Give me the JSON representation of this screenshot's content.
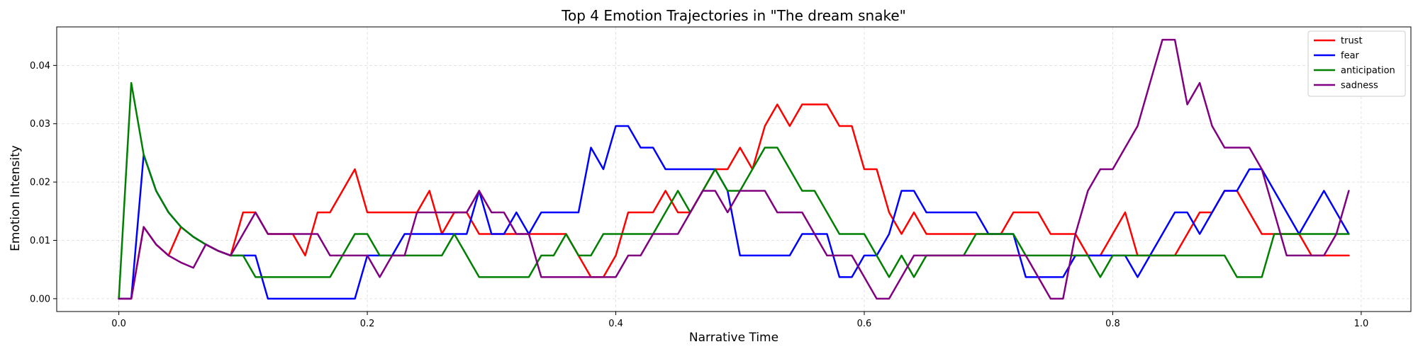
{
  "chart_data": {
    "type": "line",
    "title": "Top 4 Emotion Trajectories in \"The dream snake\"",
    "xlabel": "Narrative Time",
    "ylabel": "Emotion Intensity",
    "xlim": [
      -0.05,
      1.04
    ],
    "ylim": [
      -0.0022,
      0.0466
    ],
    "x_ticks": [
      0.0,
      0.2,
      0.4,
      0.6,
      0.8,
      1.0
    ],
    "x_tick_labels": [
      "0.0",
      "0.2",
      "0.4",
      "0.6",
      "0.8",
      "1.0"
    ],
    "y_ticks": [
      0.0,
      0.01,
      0.02,
      0.03,
      0.04
    ],
    "y_tick_labels": [
      "0.00",
      "0.01",
      "0.02",
      "0.03",
      "0.04"
    ],
    "grid": true,
    "legend_position": "top-right",
    "x": [
      0.0,
      0.01,
      0.02,
      0.03,
      0.04,
      0.05,
      0.06,
      0.07,
      0.08,
      0.09,
      0.1,
      0.11,
      0.12,
      0.13,
      0.14,
      0.15,
      0.16,
      0.17,
      0.18,
      0.19,
      0.2,
      0.21,
      0.22,
      0.23,
      0.24,
      0.25,
      0.26,
      0.27,
      0.28,
      0.29,
      0.3,
      0.31,
      0.32,
      0.33,
      0.34,
      0.35,
      0.36,
      0.37,
      0.38,
      0.39,
      0.4,
      0.41,
      0.42,
      0.43,
      0.44,
      0.45,
      0.46,
      0.47,
      0.48,
      0.49,
      0.5,
      0.51,
      0.52,
      0.53,
      0.54,
      0.55,
      0.56,
      0.57,
      0.58,
      0.59,
      0.6,
      0.61,
      0.62,
      0.63,
      0.64,
      0.65,
      0.66,
      0.67,
      0.68,
      0.69,
      0.7,
      0.71,
      0.72,
      0.73,
      0.74,
      0.75,
      0.76,
      0.77,
      0.78,
      0.79,
      0.8,
      0.81,
      0.82,
      0.83,
      0.84,
      0.85,
      0.86,
      0.87,
      0.88,
      0.89,
      0.9,
      0.91,
      0.92,
      0.93,
      0.94,
      0.95,
      0.96,
      0.97,
      0.98,
      0.99
    ],
    "series": [
      {
        "name": "trust",
        "color": "#ff0000",
        "values": [
          0.0,
          0.0,
          0.0123,
          0.0093,
          0.0074,
          0.0123,
          0.0106,
          0.0093,
          0.0082,
          0.0074,
          0.0148,
          0.0148,
          0.0111,
          0.0111,
          0.0111,
          0.0074,
          0.0148,
          0.0148,
          0.0185,
          0.0222,
          0.0148,
          0.0148,
          0.0148,
          0.0148,
          0.0148,
          0.0185,
          0.0111,
          0.0148,
          0.0148,
          0.0111,
          0.0111,
          0.0111,
          0.0111,
          0.0111,
          0.0111,
          0.0111,
          0.0111,
          0.0074,
          0.0037,
          0.0037,
          0.0074,
          0.0148,
          0.0148,
          0.0148,
          0.0185,
          0.0148,
          0.0148,
          0.0185,
          0.0222,
          0.0222,
          0.0259,
          0.0222,
          0.0296,
          0.0333,
          0.0296,
          0.0333,
          0.0333,
          0.0333,
          0.0296,
          0.0296,
          0.0222,
          0.0222,
          0.0148,
          0.0111,
          0.0148,
          0.0111,
          0.0111,
          0.0111,
          0.0111,
          0.0111,
          0.0111,
          0.0111,
          0.0148,
          0.0148,
          0.0148,
          0.0111,
          0.0111,
          0.0111,
          0.0074,
          0.0074,
          0.0111,
          0.0148,
          0.0074,
          0.0074,
          0.0074,
          0.0074,
          0.0111,
          0.0148,
          0.0148,
          0.0185,
          0.0185,
          0.0148,
          0.0111,
          0.0111,
          0.0111,
          0.0111,
          0.0074,
          0.0074,
          0.0074,
          0.0074
        ]
      },
      {
        "name": "fear",
        "color": "#0000ff",
        "values": [
          0.0,
          0.0,
          0.0247,
          0.0185,
          0.0148,
          0.0123,
          0.0106,
          0.0093,
          0.0082,
          0.0074,
          0.0074,
          0.0074,
          0.0,
          0.0,
          0.0,
          0.0,
          0.0,
          0.0,
          0.0,
          0.0,
          0.0074,
          0.0074,
          0.0074,
          0.0111,
          0.0111,
          0.0111,
          0.0111,
          0.0111,
          0.0111,
          0.0185,
          0.0111,
          0.0111,
          0.0148,
          0.0111,
          0.0148,
          0.0148,
          0.0148,
          0.0148,
          0.0259,
          0.0222,
          0.0296,
          0.0296,
          0.0259,
          0.0259,
          0.0222,
          0.0222,
          0.0222,
          0.0222,
          0.0222,
          0.0185,
          0.0074,
          0.0074,
          0.0074,
          0.0074,
          0.0074,
          0.0111,
          0.0111,
          0.0111,
          0.0037,
          0.0037,
          0.0074,
          0.0074,
          0.0111,
          0.0185,
          0.0185,
          0.0148,
          0.0148,
          0.0148,
          0.0148,
          0.0148,
          0.0111,
          0.0111,
          0.0111,
          0.0037,
          0.0037,
          0.0037,
          0.0037,
          0.0074,
          0.0074,
          0.0074,
          0.0074,
          0.0074,
          0.0037,
          0.0074,
          0.0111,
          0.0148,
          0.0148,
          0.0111,
          0.0148,
          0.0185,
          0.0185,
          0.0222,
          0.0222,
          0.0185,
          0.0148,
          0.0111,
          0.0148,
          0.0185,
          0.0148,
          0.0111
        ]
      },
      {
        "name": "anticipation",
        "color": "#008000",
        "values": [
          0.0,
          0.037,
          0.0247,
          0.0185,
          0.0148,
          0.0123,
          0.0106,
          0.0093,
          0.0082,
          0.0074,
          0.0074,
          0.0037,
          0.0037,
          0.0037,
          0.0037,
          0.0037,
          0.0037,
          0.0037,
          0.0074,
          0.0111,
          0.0111,
          0.0074,
          0.0074,
          0.0074,
          0.0074,
          0.0074,
          0.0074,
          0.0111,
          0.0074,
          0.0037,
          0.0037,
          0.0037,
          0.0037,
          0.0037,
          0.0074,
          0.0074,
          0.0111,
          0.0074,
          0.0074,
          0.0111,
          0.0111,
          0.0111,
          0.0111,
          0.0111,
          0.0148,
          0.0185,
          0.0148,
          0.0185,
          0.0222,
          0.0185,
          0.0185,
          0.0222,
          0.0259,
          0.0259,
          0.0222,
          0.0185,
          0.0185,
          0.0148,
          0.0111,
          0.0111,
          0.0111,
          0.0074,
          0.0037,
          0.0074,
          0.0037,
          0.0074,
          0.0074,
          0.0074,
          0.0074,
          0.0111,
          0.0111,
          0.0111,
          0.0111,
          0.0074,
          0.0074,
          0.0074,
          0.0074,
          0.0074,
          0.0074,
          0.0037,
          0.0074,
          0.0074,
          0.0074,
          0.0074,
          0.0074,
          0.0074,
          0.0074,
          0.0074,
          0.0074,
          0.0074,
          0.0037,
          0.0037,
          0.0037,
          0.0111,
          0.0111,
          0.0111,
          0.0111,
          0.0111,
          0.0111,
          0.0111
        ]
      },
      {
        "name": "sadness",
        "color": "#800080",
        "values": [
          0.0,
          0.0,
          0.0123,
          0.0093,
          0.0074,
          0.0062,
          0.0053,
          0.0093,
          0.0082,
          0.0074,
          0.0111,
          0.0148,
          0.0111,
          0.0111,
          0.0111,
          0.0111,
          0.0111,
          0.0074,
          0.0074,
          0.0074,
          0.0074,
          0.0037,
          0.0074,
          0.0074,
          0.0148,
          0.0148,
          0.0148,
          0.0148,
          0.0148,
          0.0185,
          0.0148,
          0.0148,
          0.0111,
          0.0111,
          0.0037,
          0.0037,
          0.0037,
          0.0037,
          0.0037,
          0.0037,
          0.0037,
          0.0074,
          0.0074,
          0.0111,
          0.0111,
          0.0111,
          0.0148,
          0.0185,
          0.0185,
          0.0148,
          0.0185,
          0.0185,
          0.0185,
          0.0148,
          0.0148,
          0.0148,
          0.0111,
          0.0074,
          0.0074,
          0.0074,
          0.0037,
          0.0,
          0.0,
          0.0037,
          0.0074,
          0.0074,
          0.0074,
          0.0074,
          0.0074,
          0.0074,
          0.0074,
          0.0074,
          0.0074,
          0.0074,
          0.0037,
          0.0,
          0.0,
          0.0111,
          0.0185,
          0.0222,
          0.0222,
          0.0259,
          0.0296,
          0.037,
          0.0444,
          0.0444,
          0.0333,
          0.037,
          0.0296,
          0.0259,
          0.0259,
          0.0259,
          0.0222,
          0.0148,
          0.0074,
          0.0074,
          0.0074,
          0.0074,
          0.0111,
          0.0185
        ]
      }
    ]
  }
}
